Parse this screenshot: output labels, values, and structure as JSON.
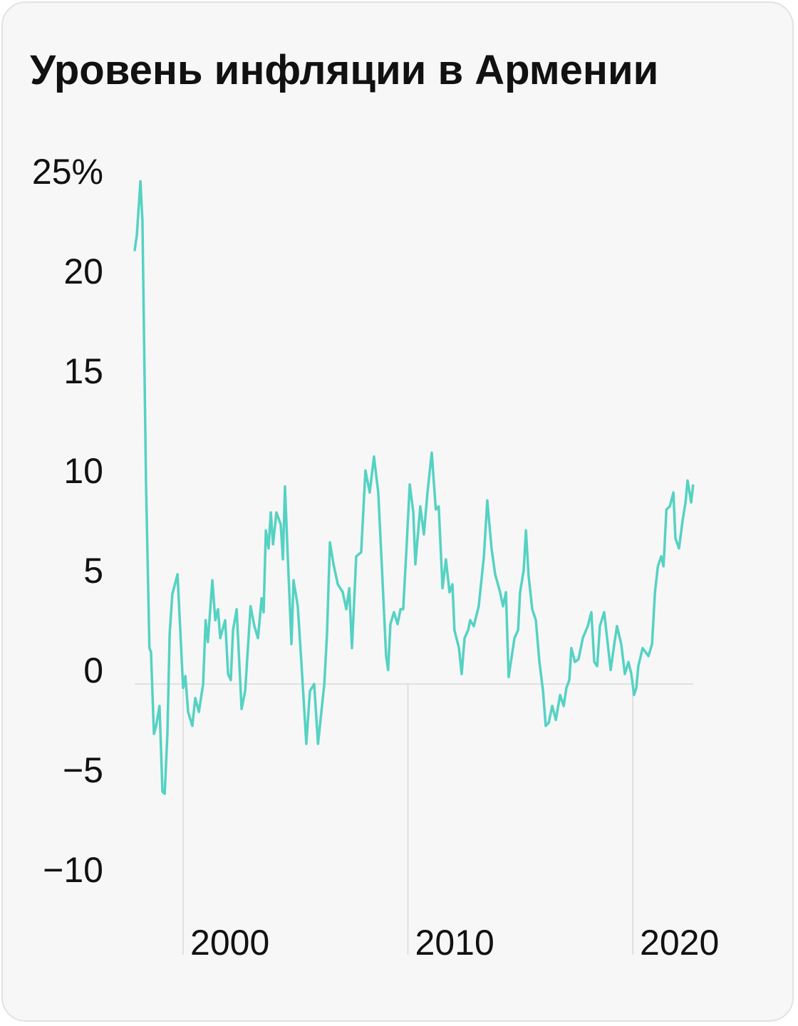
{
  "chart_data": {
    "type": "line",
    "title": "Уровень инфляции в Армении",
    "x": [
      1997.84,
      1997.94,
      1998.1,
      1998.19,
      1998.35,
      1998.5,
      1998.57,
      1998.7,
      1998.8,
      1998.95,
      1999.08,
      1999.18,
      1999.3,
      1999.4,
      1999.52,
      1999.75,
      2000.0,
      2000.1,
      2000.22,
      2000.41,
      2000.54,
      2000.7,
      2000.89,
      2001.0,
      2001.1,
      2001.3,
      2001.43,
      2001.55,
      2001.65,
      2001.87,
      2002.0,
      2002.12,
      2002.22,
      2002.38,
      2002.6,
      2002.76,
      2003.0,
      2003.17,
      2003.33,
      2003.49,
      2003.58,
      2003.68,
      2003.8,
      2003.9,
      2004.0,
      2004.15,
      2004.34,
      2004.44,
      2004.53,
      2004.66,
      2004.82,
      2004.91,
      2005.1,
      2005.26,
      2005.48,
      2005.64,
      2005.83,
      2006.0,
      2006.28,
      2006.4,
      2006.53,
      2006.69,
      2006.88,
      2007.1,
      2007.26,
      2007.39,
      2007.51,
      2007.7,
      2007.92,
      2008.11,
      2008.3,
      2008.49,
      2008.68,
      2008.84,
      2009.03,
      2009.12,
      2009.22,
      2009.38,
      2009.54,
      2009.67,
      2009.79,
      2009.95,
      2010.08,
      2010.24,
      2010.33,
      2010.55,
      2010.71,
      2010.87,
      2011.06,
      2011.24,
      2011.37,
      2011.54,
      2011.69,
      2011.85,
      2011.98,
      2012.07,
      2012.27,
      2012.39,
      2012.52,
      2012.68,
      2012.77,
      2012.93,
      2013.15,
      2013.38,
      2013.53,
      2013.72,
      2013.88,
      2014.1,
      2014.23,
      2014.36,
      2014.48,
      2014.74,
      2014.9,
      2014.99,
      2015.15,
      2015.25,
      2015.37,
      2015.53,
      2015.69,
      2015.85,
      2016.01,
      2016.13,
      2016.26,
      2016.42,
      2016.58,
      2016.77,
      2016.93,
      2017.05,
      2017.18,
      2017.27,
      2017.43,
      2017.59,
      2017.78,
      2018.0,
      2018.16,
      2018.29,
      2018.42,
      2018.54,
      2018.73,
      2018.89,
      2019.02,
      2019.18,
      2019.3,
      2019.49,
      2019.65,
      2019.81,
      2019.94,
      2020.06,
      2020.16,
      2020.25,
      2020.44,
      2020.57,
      2020.7,
      2020.86,
      2020.99,
      2021.12,
      2021.27,
      2021.37,
      2021.5,
      2021.65,
      2021.81,
      2021.9,
      2022.06,
      2022.22,
      2022.35,
      2022.44,
      2022.6,
      2022.69
    ],
    "series": [
      {
        "color": "#55d2c3",
        "values": [
          21.7,
          22.5,
          25.2,
          23.2,
          10,
          1.8,
          1.6,
          -2.5,
          -2.1,
          -1.1,
          -5.4,
          -5.5,
          -2.5,
          2.5,
          4.5,
          5.5,
          -0.2,
          0.4,
          -1.4,
          -2.1,
          -0.7,
          -1.4,
          0,
          3.2,
          2.1,
          5.2,
          3.2,
          3.75,
          2.3,
          3.2,
          0.5,
          0.2,
          2.7,
          3.75,
          -1.25,
          -0.35,
          3.9,
          2.9,
          2.3,
          4.3,
          3.6,
          7.7,
          6.8,
          8.6,
          7,
          8.6,
          8,
          6.25,
          9.9,
          6.25,
          2,
          5.2,
          3.9,
          1.1,
          -3,
          -0.35,
          0,
          -3,
          0,
          2.5,
          7.1,
          6,
          5,
          4.6,
          3.75,
          4.8,
          1.8,
          6.4,
          6.6,
          10.7,
          9.6,
          11.4,
          9.6,
          5.9,
          1.4,
          0.7,
          3,
          3.6,
          3,
          3.75,
          3.75,
          7.1,
          10,
          8.6,
          6,
          8.9,
          7.5,
          9.6,
          11.6,
          8.75,
          8.9,
          4.8,
          6.25,
          4.6,
          5,
          2.7,
          1.8,
          0.5,
          2.3,
          2.7,
          3.2,
          2.9,
          3.9,
          6.4,
          9.2,
          6.8,
          5.5,
          4.6,
          3.9,
          4.6,
          0.35,
          2.3,
          2.7,
          4.6,
          5.7,
          7.7,
          5.4,
          3.75,
          3.2,
          1.1,
          -0.35,
          -2.1,
          -1.95,
          -1.1,
          -1.8,
          -0.55,
          -1.1,
          -0.2,
          0.2,
          1.8,
          1.1,
          1.25,
          2.3,
          2.9,
          3.6,
          1.1,
          0.9,
          2.9,
          3.6,
          2,
          0.7,
          2,
          2.9,
          2,
          0.5,
          1.1,
          0.5,
          -0.55,
          -0.2,
          0.9,
          1.8,
          1.6,
          1.4,
          2,
          4.6,
          5.9,
          6.4,
          5.9,
          8.75,
          8.9,
          9.6,
          7.3,
          6.8,
          8.2,
          9.1,
          10.2,
          9.1,
          10
        ]
      }
    ],
    "xlim": [
      1997.85,
      2022.7
    ],
    "xticks": [
      2000,
      2010,
      2020
    ],
    "ylim": [
      -10,
      25
    ],
    "yticks": [
      {
        "value": -10,
        "label": "−10"
      },
      {
        "value": -5,
        "label": "−5"
      },
      0,
      5,
      10,
      15,
      20,
      {
        "value": 25,
        "label": "25%"
      }
    ]
  }
}
